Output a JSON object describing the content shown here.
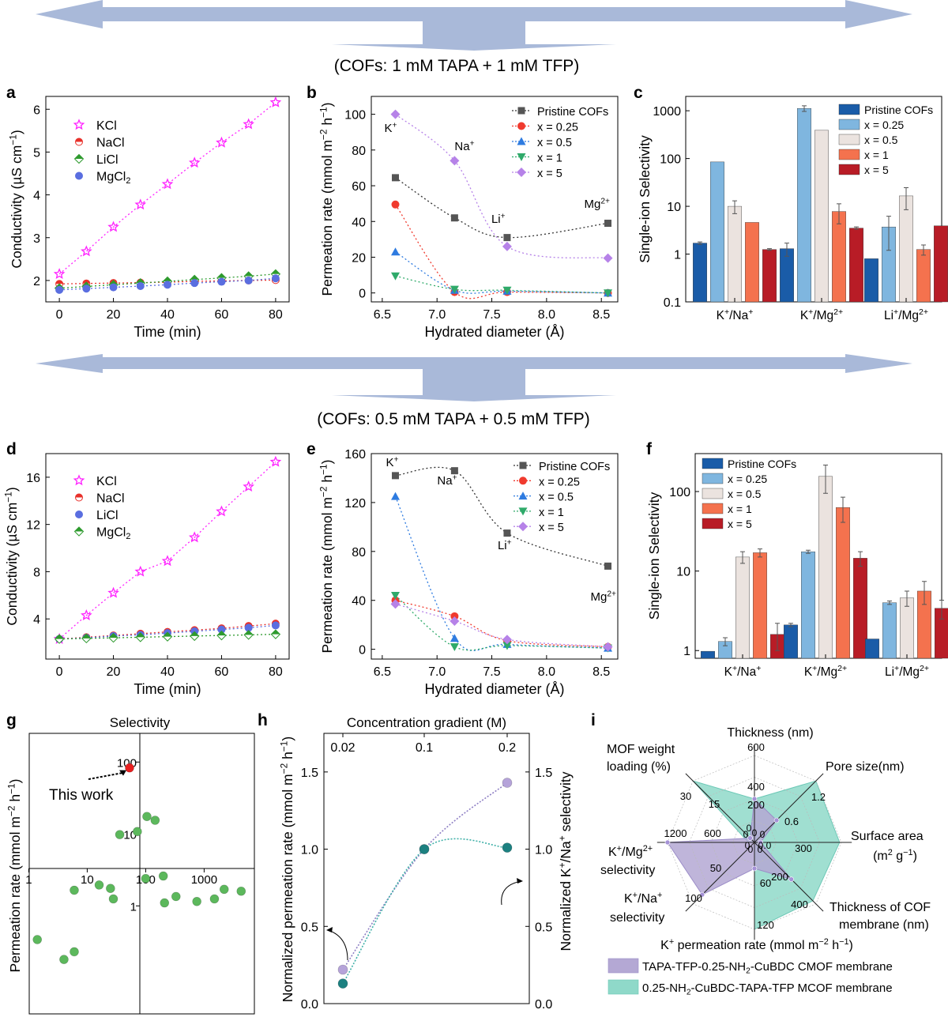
{
  "banners": [
    {
      "text": "(COFs: 1 mM TAPA + 1 mM TFP)"
    },
    {
      "text": "(COFs: 0.5 mM TAPA + 0.5 mM TFP)"
    }
  ],
  "colors": {
    "arrow": "#a9b9d9",
    "kcl": "#ff22ff",
    "nacl": "#e8302a",
    "licl_a": "#2e9a2e",
    "mgcl2_a": "#5a6ee0",
    "pristine": "#555555",
    "x025": "#f03a2e",
    "x05": "#2e7be0",
    "x1": "#2faa6a",
    "x5": "#b682e8",
    "bar_pristine": "#1a5ca8",
    "bar_x025": "#7fb6df",
    "bar_x05": "#ebe3df",
    "bar_x1": "#f4724e",
    "bar_x5": "#b81c26",
    "green_dot": "#5cb85c",
    "red_dot": "#e82020",
    "cmof": "#b4a8d4",
    "mcof": "#8fd9c9",
    "purple_pt": "#b5a3d9",
    "teal_pt": "#1c8080"
  },
  "chart_data": [
    {
      "panel": "a",
      "type": "scatter",
      "xlabel": "Time (min)",
      "ylabel": "Conductivity (µS cm⁻¹)",
      "xlim": [
        -5,
        85
      ],
      "ylim": [
        1.5,
        6.3
      ],
      "xticks": [
        0,
        20,
        40,
        60,
        80
      ],
      "yticks": [
        2,
        3,
        4,
        5,
        6
      ],
      "x": [
        0,
        10,
        20,
        30,
        40,
        50,
        60,
        70,
        80
      ],
      "series": [
        {
          "name": "KCl",
          "values": [
            2.15,
            2.68,
            3.25,
            3.77,
            4.25,
            4.75,
            5.22,
            5.65,
            6.16
          ]
        },
        {
          "name": "NaCl",
          "values": [
            1.92,
            1.93,
            1.94,
            1.95,
            1.96,
            1.98,
            1.99,
            2.0,
            2.01
          ]
        },
        {
          "name": "LiCl",
          "values": [
            1.82,
            1.86,
            1.9,
            1.94,
            1.98,
            2.02,
            2.06,
            2.1,
            2.15
          ]
        },
        {
          "name": "MgCl₂",
          "values": [
            1.78,
            1.81,
            1.84,
            1.87,
            1.9,
            1.94,
            1.97,
            2.0,
            2.05
          ]
        }
      ]
    },
    {
      "panel": "b",
      "type": "scatter",
      "xlabel": "Hydrated diameter (Å)",
      "ylabel": "Permeation rate (mmol m⁻² h⁻¹)",
      "xlim": [
        6.4,
        8.65
      ],
      "ylim": [
        -5,
        110
      ],
      "xticks": [
        6.5,
        7.0,
        7.5,
        8.0,
        8.5
      ],
      "yticks": [
        0,
        20,
        40,
        60,
        80,
        100
      ],
      "x": [
        6.62,
        7.16,
        7.64,
        8.56
      ],
      "ion_labels": [
        "K⁺",
        "Na⁺",
        "Li⁺",
        "Mg²⁺"
      ],
      "series": [
        {
          "name": "Pristine COFs",
          "values": [
            64.5,
            42,
            31,
            39
          ]
        },
        {
          "name": "x = 0.25",
          "values": [
            49.5,
            0.5,
            0.5,
            0
          ]
        },
        {
          "name": "x = 0.5",
          "values": [
            23,
            1.5,
            1,
            0
          ]
        },
        {
          "name": "x = 1",
          "values": [
            9.5,
            2,
            1.5,
            0
          ]
        },
        {
          "name": "x = 5",
          "values": [
            100,
            74,
            26,
            19.5
          ]
        }
      ]
    },
    {
      "panel": "c",
      "type": "bar",
      "ylabel": "Single-ion Selectivity",
      "yscale": "log",
      "ylim": [
        0.1,
        2000
      ],
      "yticks": [
        "0.1",
        "1",
        "10",
        "100",
        "1000"
      ],
      "categories": [
        "K⁺/Na⁺",
        "K⁺/Mg²⁺",
        "Li⁺/Mg²⁺"
      ],
      "series": [
        {
          "name": "Pristine COFs",
          "values": [
            1.7,
            1.3,
            0.8
          ],
          "errors": [
            0.1,
            0.4,
            0
          ]
        },
        {
          "name": "x = 0.25",
          "values": [
            85,
            1120,
            3.7
          ],
          "errors": [
            0,
            150,
            2.5
          ]
        },
        {
          "name": "x = 0.5",
          "values": [
            10,
            390,
            16.5
          ],
          "errors": [
            3,
            0,
            8
          ]
        },
        {
          "name": "x = 1",
          "values": [
            4.6,
            7.8,
            1.25
          ],
          "errors": [
            0,
            3.5,
            0.3
          ]
        },
        {
          "name": "x = 5",
          "values": [
            1.25,
            3.5,
            3.9
          ],
          "errors": [
            0.05,
            0.2,
            0
          ]
        }
      ]
    },
    {
      "panel": "d",
      "type": "scatter",
      "xlabel": "Time (min)",
      "ylabel": "Conductivity (µS cm⁻¹)",
      "xlim": [
        -5,
        85
      ],
      "ylim": [
        0.6,
        18
      ],
      "xticks": [
        0,
        20,
        40,
        60,
        80
      ],
      "yticks": [
        4,
        8,
        12,
        16
      ],
      "x": [
        0,
        10,
        20,
        30,
        40,
        50,
        60,
        70,
        80
      ],
      "series": [
        {
          "name": "KCl",
          "values": [
            2.3,
            4.3,
            6.2,
            8.0,
            8.9,
            10.9,
            13.1,
            15.2,
            17.3
          ]
        },
        {
          "name": "NaCl",
          "values": [
            2.3,
            2.45,
            2.6,
            2.75,
            2.9,
            3.05,
            3.2,
            3.4,
            3.6
          ]
        },
        {
          "name": "LiCl",
          "values": [
            2.3,
            2.4,
            2.55,
            2.65,
            2.8,
            2.95,
            3.1,
            3.25,
            3.45
          ]
        },
        {
          "name": "MgCl₂",
          "values": [
            2.3,
            2.35,
            2.4,
            2.45,
            2.5,
            2.55,
            2.6,
            2.65,
            2.7
          ]
        }
      ]
    },
    {
      "panel": "e",
      "type": "scatter",
      "xlabel": "Hydrated diameter (Å)",
      "ylabel": "Permeation rate (mmol m⁻² h⁻¹)",
      "xlim": [
        6.4,
        8.65
      ],
      "ylim": [
        -8,
        160
      ],
      "xticks": [
        6.5,
        7.0,
        7.5,
        8.0,
        8.5
      ],
      "yticks": [
        0,
        40,
        80,
        120,
        160
      ],
      "x": [
        6.62,
        7.16,
        7.64,
        8.56
      ],
      "ion_labels": [
        "K⁺",
        "Na⁺",
        "Li⁺",
        "Mg²⁺"
      ],
      "series": [
        {
          "name": "Pristine COFs",
          "values": [
            142,
            146,
            95,
            68
          ]
        },
        {
          "name": "x = 0.25",
          "values": [
            40,
            27,
            7,
            2
          ]
        },
        {
          "name": "x = 0.5",
          "values": [
            125,
            9,
            4,
            1
          ]
        },
        {
          "name": "x = 1",
          "values": [
            44,
            2,
            3,
            1
          ]
        },
        {
          "name": "x = 5",
          "values": [
            37,
            23,
            8,
            2
          ]
        }
      ]
    },
    {
      "panel": "f",
      "type": "bar",
      "ylabel": "Single-ion Selectivity",
      "yscale": "log",
      "ylim": [
        0.8,
        300
      ],
      "yticks": [
        "1",
        "10",
        "100"
      ],
      "categories": [
        "K⁺/Na⁺",
        "K⁺/Mg²⁺",
        "Li⁺/Mg²⁺"
      ],
      "series": [
        {
          "name": "Pristine COFs",
          "values": [
            0.98,
            2.1,
            1.4
          ],
          "errors": [
            0,
            0.1,
            0
          ]
        },
        {
          "name": "x = 0.25",
          "values": [
            1.3,
            17.5,
            4.0
          ],
          "errors": [
            0.15,
            0.8,
            0.2
          ]
        },
        {
          "name": "x = 0.5",
          "values": [
            15,
            155,
            4.6
          ],
          "errors": [
            2.5,
            60,
            1.0
          ]
        },
        {
          "name": "x = 1",
          "values": [
            17,
            63,
            5.6
          ],
          "errors": [
            2.0,
            22,
            1.8
          ]
        },
        {
          "name": "x = 5",
          "values": [
            1.6,
            14.5,
            3.4
          ],
          "errors": [
            0.6,
            3.0,
            0.9
          ]
        }
      ]
    },
    {
      "panel": "g",
      "type": "scatter",
      "title": "Selectivity",
      "ylabel": "Permeation rate (mmol m⁻² h⁻¹)",
      "xscale": "log",
      "yscale": "log",
      "xticks": [
        "1",
        "10",
        "100",
        "1000"
      ],
      "yticks": [
        "1",
        "10",
        "100"
      ],
      "annotation": "This work",
      "highlight": {
        "x": 53,
        "y": 83
      },
      "points": [
        {
          "x": 1.4,
          "y": 0.34
        },
        {
          "x": 4.0,
          "y": 0.18
        },
        {
          "x": 6.0,
          "y": 0.23
        },
        {
          "x": 6.0,
          "y": 1.65
        },
        {
          "x": 16,
          "y": 1.95
        },
        {
          "x": 25,
          "y": 1.75
        },
        {
          "x": 28,
          "y": 1.25
        },
        {
          "x": 36,
          "y": 9.8
        },
        {
          "x": 72,
          "y": 10.8
        },
        {
          "x": 105,
          "y": 17.5
        },
        {
          "x": 145,
          "y": 15.5
        },
        {
          "x": 100,
          "y": 2.4
        },
        {
          "x": 200,
          "y": 2.6
        },
        {
          "x": 210,
          "y": 1.1
        },
        {
          "x": 330,
          "y": 1.35
        },
        {
          "x": 750,
          "y": 1.15
        },
        {
          "x": 1500,
          "y": 1.25
        },
        {
          "x": 2200,
          "y": 1.7
        },
        {
          "x": 4300,
          "y": 1.6
        }
      ]
    },
    {
      "panel": "h",
      "type": "scatter",
      "title": "Concentration gradient (M)",
      "ylabel": "Normalized permeation rate (mmol m⁻² h⁻¹)",
      "y2label": "Normalized K⁺/Na⁺ selectivity",
      "categories": [
        "0.02",
        "0.1",
        "0.2"
      ],
      "ylim": [
        0,
        1.75
      ],
      "yticks": [
        "0.0",
        "0.5",
        "1.0",
        "1.5"
      ],
      "series": [
        {
          "name": "Normalized permeation rate",
          "values": [
            0.22,
            1.0,
            1.43
          ]
        },
        {
          "name": "Normalized K⁺/Na⁺ selectivity",
          "values": [
            0.13,
            1.0,
            1.01
          ]
        }
      ]
    },
    {
      "panel": "i",
      "type": "radar",
      "axes": [
        {
          "label": "Thickness (nm)",
          "ticks": [
            "200",
            "400",
            "600"
          ]
        },
        {
          "label": "Pore size(nm)",
          "ticks": [
            "0.6",
            "1.2"
          ]
        },
        {
          "label": "Surface area",
          "label2": "(m² g⁻¹)",
          "ticks": [
            "300"
          ]
        },
        {
          "label": "Thickness of COF",
          "label2": "membrane (nm)",
          "ticks": [
            "200",
            "400"
          ]
        },
        {
          "label": "K⁺ permeation rate (mmol m⁻² h⁻¹)",
          "ticks": [
            "60",
            "120"
          ]
        },
        {
          "label": "K⁺/Na⁺",
          "label2": "selectivity",
          "ticks": [
            "50",
            "100"
          ]
        },
        {
          "label": "K⁺/Mg²⁺",
          "label2": "selectivity",
          "ticks": [
            "600",
            "1200"
          ]
        },
        {
          "label": "MOF weight",
          "label2": "loading (%)",
          "ticks": [
            "15",
            "30"
          ]
        }
      ],
      "center_labels": [
        "0",
        "0",
        "0.0",
        "0",
        "0",
        "0",
        "0",
        "0"
      ],
      "series": [
        {
          "name": "TAPA-TFP-0.25-NH₂-CuBDC CMOF membrane",
          "fractions": [
            0.5,
            0.36,
            0.07,
            0.6,
            0.3,
            0.85,
            1.0,
            0.07
          ]
        },
        {
          "name": "0.25-NH₂-CuBDC-TAPA-TFP MCOF membrane",
          "fractions": [
            0.5,
            1.0,
            0.98,
            0.95,
            1.0,
            0.0,
            0.07,
            1.0
          ]
        }
      ]
    }
  ]
}
